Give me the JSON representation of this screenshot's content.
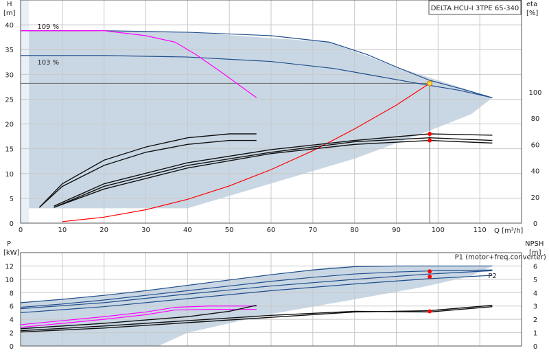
{
  "chart_data": [
    {
      "type": "line",
      "title": "DELTA HCU-I 3TPE 65-340",
      "xlabel": "Q [m³/h]",
      "ylabel_left": [
        "H",
        "[m]"
      ],
      "ylabel_right": [
        "eta",
        "[%]"
      ],
      "xlim": [
        0,
        120
      ],
      "ylim_left": [
        0,
        45
      ],
      "ylim_right": [
        0,
        170
      ],
      "x_ticks": [
        "0",
        "10",
        "20",
        "30",
        "40",
        "50",
        "60",
        "70",
        "80",
        "90",
        "100",
        "110"
      ],
      "y_ticks_left": [
        "0",
        "5",
        "10",
        "15",
        "20",
        "25",
        "30",
        "35",
        "40"
      ],
      "y_ticks_right": [
        "0",
        "20",
        "40",
        "60",
        "80",
        "100"
      ],
      "grid": true,
      "annotations": [
        {
          "text": "109 %",
          "x": 4,
          "y": 39.2
        },
        {
          "text": "103 %",
          "x": 4,
          "y": 32.0
        }
      ],
      "duty_point": {
        "x": 98,
        "y": 28.2
      },
      "series": [
        {
          "role": "H-max-109",
          "axis": "left",
          "color": "#1f4e8c",
          "x": [
            0,
            20,
            40,
            60,
            74,
            83,
            90,
            98,
            106,
            113
          ],
          "y": [
            38.8,
            38.8,
            38.5,
            37.8,
            36.5,
            34,
            31.5,
            28.8,
            27,
            25.3
          ]
        },
        {
          "role": "H-103",
          "axis": "left",
          "color": "#1f4e8c",
          "x": [
            0,
            20,
            40,
            60,
            75,
            85,
            95,
            105,
            113
          ],
          "y": [
            33.8,
            33.8,
            33.5,
            32.6,
            31.2,
            29.7,
            28.2,
            26.8,
            25.3
          ]
        },
        {
          "role": "H-magenta",
          "axis": "left",
          "color": "#ff00ff",
          "x": [
            0,
            20,
            30,
            37,
            42,
            48,
            56.5
          ],
          "y": [
            38.8,
            38.8,
            37.8,
            36.5,
            34,
            30.5,
            25.3
          ]
        },
        {
          "role": "system-curve",
          "axis": "left",
          "color": "#ff0000",
          "x": [
            10,
            20,
            30,
            40,
            50,
            60,
            70,
            80,
            90,
            98
          ],
          "y": [
            0.3,
            1.2,
            2.7,
            4.8,
            7.5,
            10.8,
            14.6,
            19,
            23.8,
            28.2
          ]
        },
        {
          "role": "eta-A",
          "axis": "right",
          "color": "#111111",
          "x": [
            4.5,
            10,
            20,
            30,
            40,
            50,
            56.5
          ],
          "y": [
            12,
            30,
            48,
            58,
            65,
            68,
            68
          ]
        },
        {
          "role": "eta-B",
          "axis": "right",
          "color": "#111111",
          "x": [
            4.5,
            10,
            20,
            30,
            40,
            50,
            56.5
          ],
          "y": [
            12,
            28,
            44,
            54,
            60,
            63,
            63
          ]
        },
        {
          "role": "eta-C",
          "axis": "right",
          "color": "#111111",
          "x": [
            8,
            20,
            40,
            60,
            80,
            98,
            113
          ],
          "y": [
            13,
            30,
            46,
            56,
            63,
            68,
            67
          ]
        },
        {
          "role": "eta-D",
          "axis": "right",
          "color": "#111111",
          "x": [
            8,
            20,
            40,
            60,
            80,
            98,
            113
          ],
          "y": [
            12,
            28,
            44,
            54,
            62,
            65,
            63
          ]
        },
        {
          "role": "eta-E",
          "axis": "right",
          "color": "#111111",
          "x": [
            8,
            20,
            40,
            60,
            80,
            98,
            113
          ],
          "y": [
            12,
            26,
            42,
            53,
            60,
            63,
            61
          ]
        }
      ],
      "marker_points": [
        {
          "axis": "right",
          "x": 98,
          "y": 68
        },
        {
          "axis": "right",
          "x": 98,
          "y": 63
        }
      ]
    },
    {
      "type": "line",
      "xlabel": "",
      "ylabel_left": [
        "P",
        "[kW]"
      ],
      "ylabel_right": [
        "NPSH",
        "[m]"
      ],
      "xlim": [
        0,
        120
      ],
      "ylim_left": [
        0,
        14
      ],
      "ylim_right": [
        0,
        7
      ],
      "y_ticks_left": [
        "0",
        "2",
        "4",
        "6",
        "8",
        "10",
        "12"
      ],
      "y_ticks_right": [
        "0",
        "1",
        "2",
        "3",
        "4",
        "5",
        "6"
      ],
      "grid": true,
      "labels": [
        {
          "text": "P1 (motor+freq.converter)",
          "x": 104,
          "y": 13.0
        },
        {
          "text": "P2",
          "x": 112,
          "y": 10.2
        }
      ],
      "series": [
        {
          "role": "P1-max",
          "axis": "left",
          "color": "#1f4e8c",
          "x": [
            0,
            10,
            20,
            30,
            40,
            50,
            60,
            70,
            80,
            90,
            100,
            113
          ],
          "y": [
            6.5,
            7.0,
            7.6,
            8.3,
            9.1,
            9.9,
            10.7,
            11.4,
            11.9,
            12.0,
            12.0,
            12.0
          ]
        },
        {
          "role": "P2-max",
          "axis": "left",
          "color": "#1f4e8c",
          "x": [
            0,
            10,
            20,
            30,
            40,
            50,
            60,
            70,
            80,
            90,
            100,
            113
          ],
          "y": [
            5.8,
            6.3,
            6.9,
            7.6,
            8.3,
            9.0,
            9.7,
            10.3,
            10.8,
            11.1,
            11.3,
            11.4
          ]
        },
        {
          "role": "P1-op",
          "axis": "left",
          "color": "#1f4e8c",
          "x": [
            0,
            20,
            40,
            60,
            80,
            98,
            113
          ],
          "y": [
            5.6,
            6.5,
            7.8,
            9.0,
            10.0,
            10.8,
            11.3
          ]
        },
        {
          "role": "P2-op",
          "axis": "left",
          "color": "#1f4e8c",
          "x": [
            0,
            20,
            40,
            60,
            80,
            98,
            113
          ],
          "y": [
            5.0,
            5.9,
            7.1,
            8.3,
            9.3,
            10.1,
            10.6
          ]
        },
        {
          "role": "P-magenta-1",
          "axis": "left",
          "color": "#ff00ff",
          "x": [
            0,
            10,
            20,
            30,
            37,
            45,
            56.5
          ],
          "y": [
            3.2,
            3.8,
            4.4,
            5.1,
            5.8,
            6.0,
            6.0
          ]
        },
        {
          "role": "P-magenta-2",
          "axis": "left",
          "color": "#ff00ff",
          "x": [
            0,
            10,
            20,
            30,
            37,
            45,
            56.5
          ],
          "y": [
            2.8,
            3.4,
            4.0,
            4.7,
            5.4,
            5.5,
            5.5
          ]
        },
        {
          "role": "NPSH-A",
          "axis": "right",
          "color": "#111111",
          "x": [
            0,
            20,
            40,
            50,
            56.5
          ],
          "y": [
            1.3,
            1.7,
            2.2,
            2.6,
            3.05
          ]
        },
        {
          "role": "NPSH-B",
          "axis": "right",
          "color": "#111111",
          "x": [
            0,
            20,
            40,
            60,
            80,
            98,
            113
          ],
          "y": [
            1.05,
            1.35,
            1.75,
            2.15,
            2.55,
            2.65,
            3.05
          ]
        },
        {
          "role": "NPSH-C",
          "axis": "right",
          "color": "#111111",
          "x": [
            0,
            20,
            40,
            60,
            80,
            98,
            113
          ],
          "y": [
            1.15,
            1.5,
            1.9,
            2.3,
            2.6,
            2.55,
            2.95
          ]
        }
      ],
      "marker_points": [
        {
          "axis": "left",
          "x": 98,
          "y": 11.2
        },
        {
          "axis": "left",
          "x": 98,
          "y": 10.4
        },
        {
          "axis": "right",
          "x": 98,
          "y": 2.6
        }
      ]
    }
  ]
}
